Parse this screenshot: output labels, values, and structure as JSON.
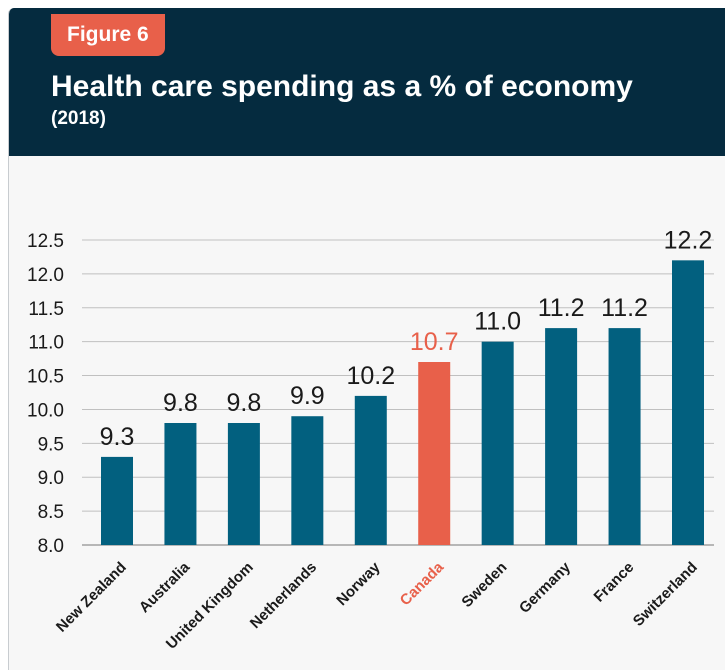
{
  "figure_label": "Figure 6",
  "title": "Health care spending as a % of economy",
  "subtitle": "(2018)",
  "colors": {
    "header_bg": "#052b3f",
    "badge": "#e8604a",
    "bar": "#02607f",
    "highlight": "#e8604a",
    "text": "#1a1a1a",
    "grid": "#c0c0c0"
  },
  "chart_data": {
    "type": "bar",
    "title": "Health care spending as a % of economy",
    "subtitle": "(2018)",
    "categories": [
      "New Zealand",
      "Australia",
      "United Kingdom",
      "Netherlands",
      "Norway",
      "Canada",
      "Sweden",
      "Germany",
      "France",
      "Switzerland"
    ],
    "values": [
      9.3,
      9.8,
      9.8,
      9.9,
      10.2,
      10.7,
      11.0,
      11.2,
      11.2,
      12.2
    ],
    "data_labels": [
      "9.3",
      "9.8",
      "9.8",
      "9.9",
      "10.2",
      "10.7",
      "11.0",
      "11.2",
      "11.2",
      "12.2"
    ],
    "highlight_category": "Canada",
    "ylim": [
      8.0,
      12.5
    ],
    "yticks": [
      "8.0",
      "8.5",
      "9.0",
      "9.5",
      "10.0",
      "10.5",
      "11.0",
      "11.5",
      "12.0",
      "12.5"
    ],
    "grid": true,
    "xlabel": "",
    "ylabel": ""
  }
}
